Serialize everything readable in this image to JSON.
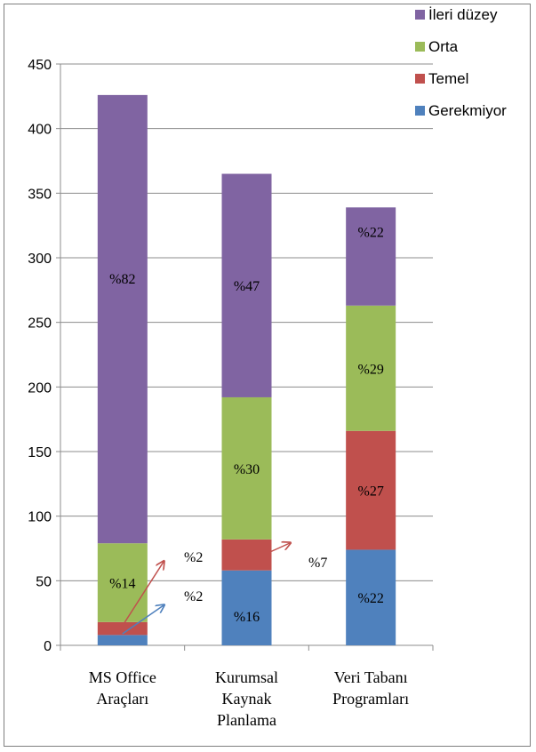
{
  "chart_data": {
    "type": "bar",
    "stacked": true,
    "categories": [
      "MS Office Araçları",
      "Kurumsal Kaynak Planlama",
      "Veri Tabanı Programları"
    ],
    "category_lines": [
      [
        "MS Office",
        "Araçları"
      ],
      [
        "Kurumsal",
        "Kaynak",
        "Planlama"
      ],
      [
        "Veri Tabanı",
        "Programları"
      ]
    ],
    "series": [
      {
        "name": "Gerekmiyor",
        "color": "#4f81bd",
        "values": [
          8,
          58,
          74
        ],
        "labels": [
          "%2",
          "%16",
          "%22"
        ]
      },
      {
        "name": "Temel",
        "color": "#c0504d",
        "values": [
          10,
          24,
          92
        ],
        "labels": [
          "%2",
          "%7",
          "%27"
        ]
      },
      {
        "name": "Orta",
        "color": "#9bbb59",
        "values": [
          61,
          110,
          97
        ],
        "labels": [
          "%14",
          "%30",
          "%29"
        ]
      },
      {
        "name": "İleri düzey",
        "color": "#8064a2",
        "values": [
          347,
          173,
          76
        ],
        "labels": [
          "%82",
          "%47",
          "%22"
        ]
      }
    ],
    "ylim": [
      0,
      450
    ],
    "yticks": [
      0,
      50,
      100,
      150,
      200,
      250,
      300,
      350,
      400,
      450
    ],
    "grid": true,
    "legend": "top-right",
    "xlabel": "",
    "ylabel": "",
    "title": ""
  }
}
